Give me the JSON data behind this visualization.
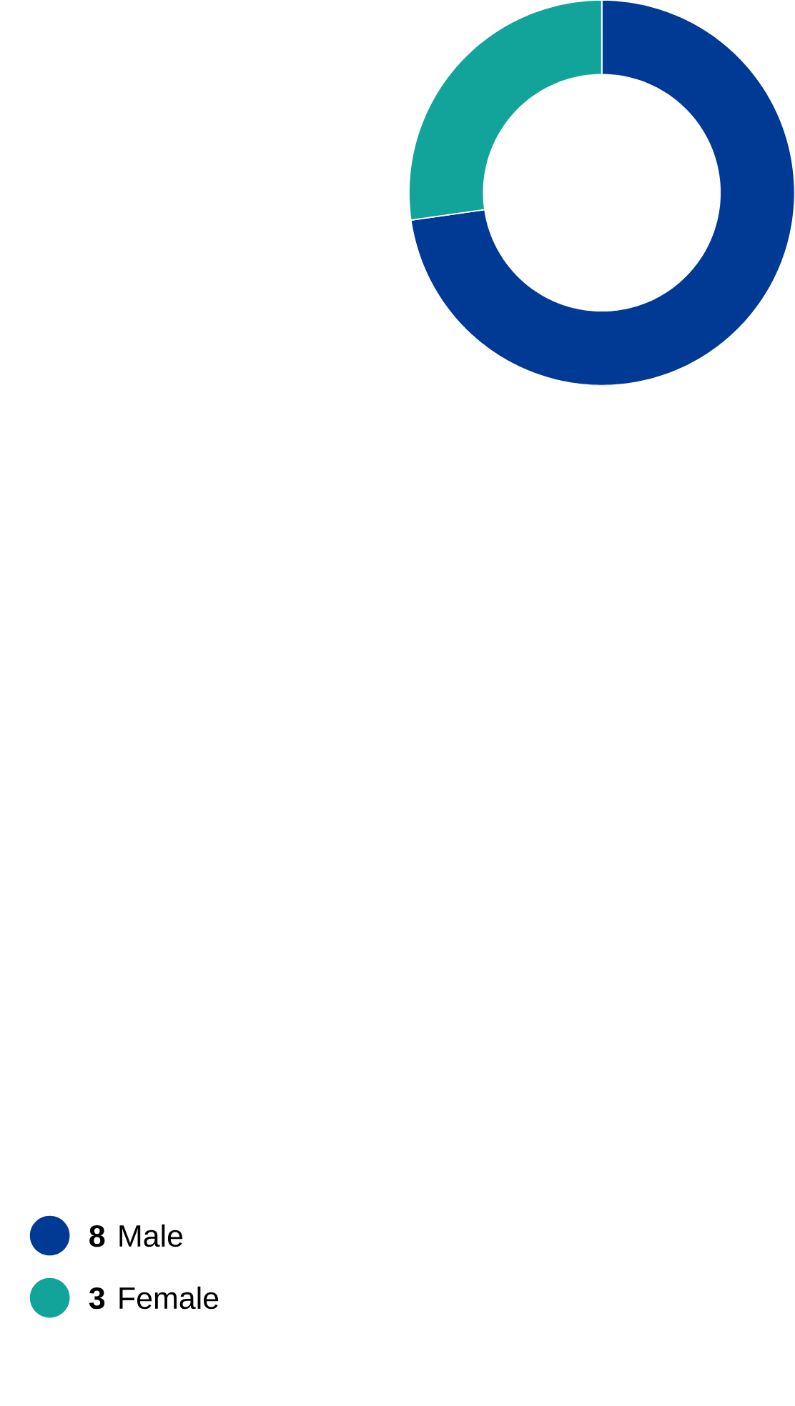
{
  "chart_data": {
    "type": "donut",
    "categories": [
      "Male",
      "Female"
    ],
    "values": [
      8,
      3
    ],
    "colors": [
      "#003a94",
      "#12a49a"
    ],
    "legend": "bottom",
    "data_labels": true
  }
}
